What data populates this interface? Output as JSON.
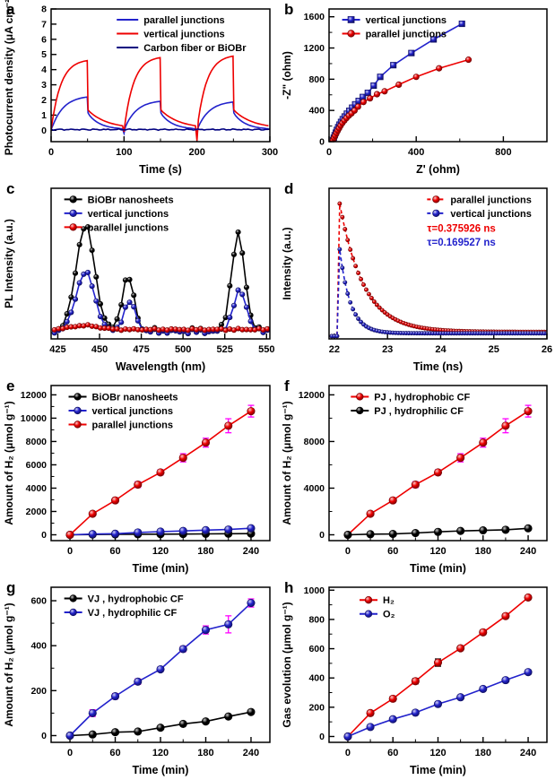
{
  "chart_data": [
    {
      "id": "a",
      "type": "line",
      "xlabel": "Time (s)",
      "ylabel": "Photocurrent density (μA cm⁻²)",
      "xlim": [
        0,
        300
      ],
      "ylim": [
        -0.75,
        8
      ],
      "xticks": [
        0,
        100,
        200,
        300
      ],
      "yticks": [
        0,
        1,
        2,
        3,
        4,
        5,
        6,
        7,
        8
      ],
      "x_minor_step": 50,
      "legend": {
        "x": 0.3,
        "y": 0.02
      },
      "series": [
        {
          "name": "parallel junctions",
          "color": "#2222cc",
          "marker": "none",
          "synth": {
            "kind": "photocurrent",
            "cycles": [
              {
                "on": 0,
                "off": 50,
                "peak": 2.3,
                "dip": 0.05
              },
              {
                "on": 100,
                "off": 150,
                "peak": 2.0,
                "dip": -0.2
              },
              {
                "on": 200,
                "off": 250,
                "peak": 1.95,
                "dip": -0.2
              }
            ],
            "rise_tau": 16,
            "off_start": 1.15,
            "decay_tau": 16,
            "floor": 0.05
          }
        },
        {
          "name": "vertical junctions",
          "color": "#ee0000",
          "marker": "none",
          "synth": {
            "kind": "photocurrent",
            "cycles": [
              {
                "on": 0,
                "off": 50,
                "peak": 4.7,
                "dip": 0.05
              },
              {
                "on": 100,
                "off": 150,
                "peak": 4.9,
                "dip": -0.1
              },
              {
                "on": 200,
                "off": 250,
                "peak": 5.0,
                "dip": -0.68
              }
            ],
            "rise_tau": 13,
            "off_start": 1.35,
            "decay_tau": 26,
            "floor": 0.1
          }
        },
        {
          "name": "Carbon fiber or BiOBr",
          "color": "#000080",
          "marker": "none",
          "synth": {
            "kind": "flat",
            "level": 0.05,
            "noise": 0.05
          }
        }
      ]
    },
    {
      "id": "b",
      "type": "scatter-line",
      "xlabel": "Z' (ohm)",
      "ylabel": "-Z\" (ohm)",
      "xlim": [
        0,
        1000
      ],
      "ylim": [
        0,
        1700
      ],
      "xticks": [
        0,
        400,
        800
      ],
      "yticks": [
        0,
        400,
        800,
        1200,
        1600
      ],
      "x_minor_step": 200,
      "y_minor_step": 200,
      "legend": {
        "x": 0.06,
        "y": 0.02
      },
      "series": [
        {
          "name": "vertical junctions",
          "color": "#2222cc",
          "marker": "square",
          "data": [
            [
              18,
              20
            ],
            [
              22,
              50
            ],
            [
              26,
              82
            ],
            [
              31,
              115
            ],
            [
              36,
              150
            ],
            [
              42,
              185
            ],
            [
              48,
              218
            ],
            [
              55,
              252
            ],
            [
              63,
              288
            ],
            [
              72,
              322
            ],
            [
              82,
              358
            ],
            [
              93,
              395
            ],
            [
              106,
              435
            ],
            [
              120,
              478
            ],
            [
              136,
              522
            ],
            [
              155,
              572
            ],
            [
              178,
              625
            ],
            [
              205,
              718
            ],
            [
              235,
              830
            ],
            [
              295,
              980
            ],
            [
              378,
              1135
            ],
            [
              480,
              1310
            ],
            [
              610,
              1510
            ]
          ]
        },
        {
          "name": "parallel junctions",
          "color": "#ee0000",
          "marker": "circle",
          "data": [
            [
              18,
              18
            ],
            [
              23,
              48
            ],
            [
              28,
              78
            ],
            [
              34,
              110
            ],
            [
              40,
              142
            ],
            [
              46,
              172
            ],
            [
              53,
              205
            ],
            [
              61,
              238
            ],
            [
              70,
              270
            ],
            [
              80,
              302
            ],
            [
              91,
              333
            ],
            [
              103,
              362
            ],
            [
              117,
              398
            ],
            [
              133,
              448
            ],
            [
              158,
              508
            ],
            [
              188,
              555
            ],
            [
              220,
              608
            ],
            [
              255,
              645
            ],
            [
              320,
              730
            ],
            [
              400,
              830
            ],
            [
              505,
              940
            ],
            [
              640,
              1050
            ]
          ]
        }
      ]
    },
    {
      "id": "c",
      "type": "line",
      "xlabel": "Wavelength (nm)",
      "ylabel": "PL Intensity (a.u.)",
      "xlim": [
        421,
        552
      ],
      "ylim": [
        0,
        1.12
      ],
      "xticks": [
        425,
        450,
        475,
        500,
        525,
        550
      ],
      "yticks": [],
      "legend": {
        "x": 0.06,
        "y": 0.02
      },
      "series": [
        {
          "name": "BiOBr nanosheets",
          "color": "#000000",
          "marker": "circle",
          "synth": {
            "kind": "pl",
            "baseline": 0.06,
            "noise": 0.028,
            "peaks": [
              {
                "c": 441.5,
                "w": 5.6,
                "a": 0.78
              },
              {
                "c": 467,
                "w": 3.6,
                "a": 0.4
              },
              {
                "c": 533,
                "w": 4.0,
                "a": 0.71
              }
            ]
          }
        },
        {
          "name": "vertical junctions",
          "color": "#2222cc",
          "marker": "circle",
          "synth": {
            "kind": "pl",
            "baseline": 0.055,
            "noise": 0.02,
            "peaks": [
              {
                "c": 441.5,
                "w": 5.6,
                "a": 0.44
              },
              {
                "c": 468,
                "w": 3.6,
                "a": 0.22
              },
              {
                "c": 534,
                "w": 4.0,
                "a": 0.3
              }
            ]
          }
        },
        {
          "name": "parallel junctions",
          "color": "#ee0000",
          "marker": "circle",
          "synth": {
            "kind": "pl",
            "baseline": 0.07,
            "noise": 0.008,
            "peaks": [
              {
                "c": 441,
                "w": 8,
                "a": 0.03
              }
            ]
          }
        }
      ]
    },
    {
      "id": "d",
      "type": "line",
      "xlabel": "Time (ns)",
      "ylabel": "Intensity (a.u.)",
      "xlim": [
        21.9,
        26
      ],
      "ylim": [
        0,
        1.08
      ],
      "xticks": [
        22,
        23,
        24,
        25,
        26
      ],
      "yticks": [],
      "legend": {
        "x": 0.45,
        "y": 0.02
      },
      "annotations": [
        {
          "text": "τ=0.375926 ns",
          "color": "#ee0000",
          "x": 0.45,
          "y": 0.29
        },
        {
          "text": "τ=0.169527 ns",
          "color": "#2222cc",
          "x": 0.45,
          "y": 0.38
        }
      ],
      "series": [
        {
          "name": "parallel junctions",
          "color": "#ee0000",
          "marker": "circle",
          "dash": true,
          "synth": {
            "kind": "decay",
            "t0": 22.1,
            "peak": 0.97,
            "tau": 0.45,
            "baseline": 0.05,
            "pre": 0.02,
            "step": 0.05
          }
        },
        {
          "name": "vertical junctions",
          "color": "#2222cc",
          "marker": "circle",
          "dash": true,
          "synth": {
            "kind": "decay",
            "t0": 22.07,
            "peak": 0.74,
            "tau": 0.2,
            "baseline": 0.04,
            "pre": 0.02,
            "step": 0.05
          }
        }
      ]
    },
    {
      "id": "e",
      "type": "scatter-line",
      "xlabel": "Time (min)",
      "ylabel": "Amount of H₂ (μmol g⁻¹)",
      "xlim": [
        -25,
        265
      ],
      "ylim": [
        -500,
        12800
      ],
      "xticks": [
        0,
        60,
        120,
        180,
        240
      ],
      "yticks": [
        0,
        2000,
        4000,
        6000,
        8000,
        10000,
        12000
      ],
      "x_minor_step": 30,
      "y_minor_step": 1000,
      "err_color": "#ff00ff",
      "legend": {
        "x": 0.08,
        "y": 0.02
      },
      "series": [
        {
          "name": "BiOBr nanosheets",
          "color": "#000000",
          "marker": "circle",
          "x": [
            0,
            30,
            60,
            90,
            120,
            150,
            180,
            210,
            240
          ],
          "y": [
            0,
            25,
            35,
            45,
            55,
            65,
            80,
            90,
            100
          ],
          "err": [
            0,
            0,
            0,
            0,
            0,
            0,
            0,
            0,
            0
          ]
        },
        {
          "name": "vertical junctions",
          "color": "#2222cc",
          "marker": "circle",
          "x": [
            0,
            30,
            60,
            90,
            120,
            150,
            180,
            210,
            240
          ],
          "y": [
            0,
            60,
            90,
            200,
            270,
            330,
            400,
            450,
            560
          ],
          "err": [
            0,
            30,
            30,
            40,
            40,
            40,
            50,
            50,
            80
          ]
        },
        {
          "name": "parallel junctions",
          "color": "#ee0000",
          "marker": "circle",
          "x": [
            0,
            30,
            60,
            90,
            120,
            150,
            180,
            210,
            240
          ],
          "y": [
            0,
            1800,
            2950,
            4300,
            5350,
            6600,
            7900,
            9350,
            10600
          ],
          "err": [
            0,
            150,
            200,
            250,
            220,
            350,
            380,
            600,
            500
          ]
        }
      ]
    },
    {
      "id": "f",
      "type": "scatter-line",
      "xlabel": "Time (min)",
      "ylabel": "Amount of H₂ (μmol g⁻¹)",
      "xlim": [
        -25,
        265
      ],
      "ylim": [
        -500,
        12800
      ],
      "xticks": [
        0,
        60,
        120,
        180,
        240
      ],
      "yticks": [
        0,
        4000,
        8000,
        12000
      ],
      "x_minor_step": 30,
      "y_minor_step": 2000,
      "err_color": "#ff00ff",
      "legend": {
        "x": 0.1,
        "y": 0.02
      },
      "series": [
        {
          "name": "PJ , hydrophobic CF",
          "color": "#ee0000",
          "marker": "circle",
          "x": [
            0,
            30,
            60,
            90,
            120,
            150,
            180,
            210,
            240
          ],
          "y": [
            0,
            1800,
            2950,
            4300,
            5350,
            6600,
            7900,
            9350,
            10600
          ],
          "err": [
            0,
            150,
            200,
            250,
            220,
            350,
            380,
            600,
            500
          ]
        },
        {
          "name": "PJ , hydrophilic CF",
          "color": "#000000",
          "marker": "circle",
          "x": [
            0,
            30,
            60,
            90,
            120,
            150,
            180,
            210,
            240
          ],
          "y": [
            0,
            50,
            70,
            150,
            250,
            330,
            380,
            430,
            550
          ],
          "err": [
            0,
            40,
            40,
            50,
            50,
            50,
            60,
            60,
            60
          ]
        }
      ]
    },
    {
      "id": "g",
      "type": "scatter-line",
      "xlabel": "Time (min)",
      "ylabel": "Amount of H₂ (μmol g⁻¹)",
      "xlim": [
        -25,
        265
      ],
      "ylim": [
        -30,
        660
      ],
      "xticks": [
        0,
        60,
        120,
        180,
        240
      ],
      "yticks": [
        0,
        200,
        400,
        600
      ],
      "x_minor_step": 30,
      "y_minor_step": 100,
      "err_color": "#ff00ff",
      "legend": {
        "x": 0.06,
        "y": 0.02
      },
      "series": [
        {
          "name": "VJ , hydrophobic CF",
          "color": "#000000",
          "marker": "circle",
          "x": [
            0,
            30,
            60,
            90,
            120,
            150,
            180,
            210,
            240
          ],
          "y": [
            0,
            5,
            15,
            18,
            35,
            52,
            63,
            85,
            105
          ],
          "err": [
            0,
            5,
            5,
            5,
            6,
            6,
            6,
            8,
            8
          ]
        },
        {
          "name": "VJ , hydrophilic CF",
          "color": "#2222cc",
          "marker": "circle",
          "x": [
            0,
            30,
            60,
            90,
            120,
            150,
            180,
            210,
            240
          ],
          "y": [
            0,
            100,
            175,
            240,
            295,
            385,
            470,
            495,
            590
          ],
          "err": [
            0,
            15,
            12,
            12,
            10,
            12,
            18,
            38,
            18
          ]
        }
      ]
    },
    {
      "id": "h",
      "type": "scatter-line",
      "xlabel": "Time (min)",
      "ylabel": "Gas evolution (μmol g⁻¹)",
      "xlim": [
        -25,
        265
      ],
      "ylim": [
        -40,
        1020
      ],
      "xticks": [
        0,
        60,
        120,
        180,
        240
      ],
      "yticks": [
        0,
        200,
        400,
        600,
        800,
        1000
      ],
      "x_minor_step": 30,
      "y_minor_step": 100,
      "err_color": "#111111",
      "legend": {
        "x": 0.14,
        "y": 0.03
      },
      "series": [
        {
          "name": "H₂",
          "color": "#ee0000",
          "marker": "circle",
          "x": [
            0,
            30,
            60,
            90,
            120,
            150,
            180,
            210,
            240
          ],
          "y": [
            0,
            160,
            258,
            378,
            505,
            603,
            712,
            823,
            950
          ],
          "err": [
            0,
            15,
            15,
            18,
            25,
            15,
            15,
            15,
            12
          ]
        },
        {
          "name": "O₂",
          "color": "#2222cc",
          "marker": "circle",
          "x": [
            0,
            30,
            60,
            90,
            120,
            150,
            180,
            210,
            240
          ],
          "y": [
            0,
            65,
            118,
            163,
            222,
            268,
            325,
            385,
            440
          ],
          "err": [
            0,
            12,
            12,
            12,
            15,
            12,
            12,
            12,
            15
          ]
        }
      ]
    }
  ]
}
